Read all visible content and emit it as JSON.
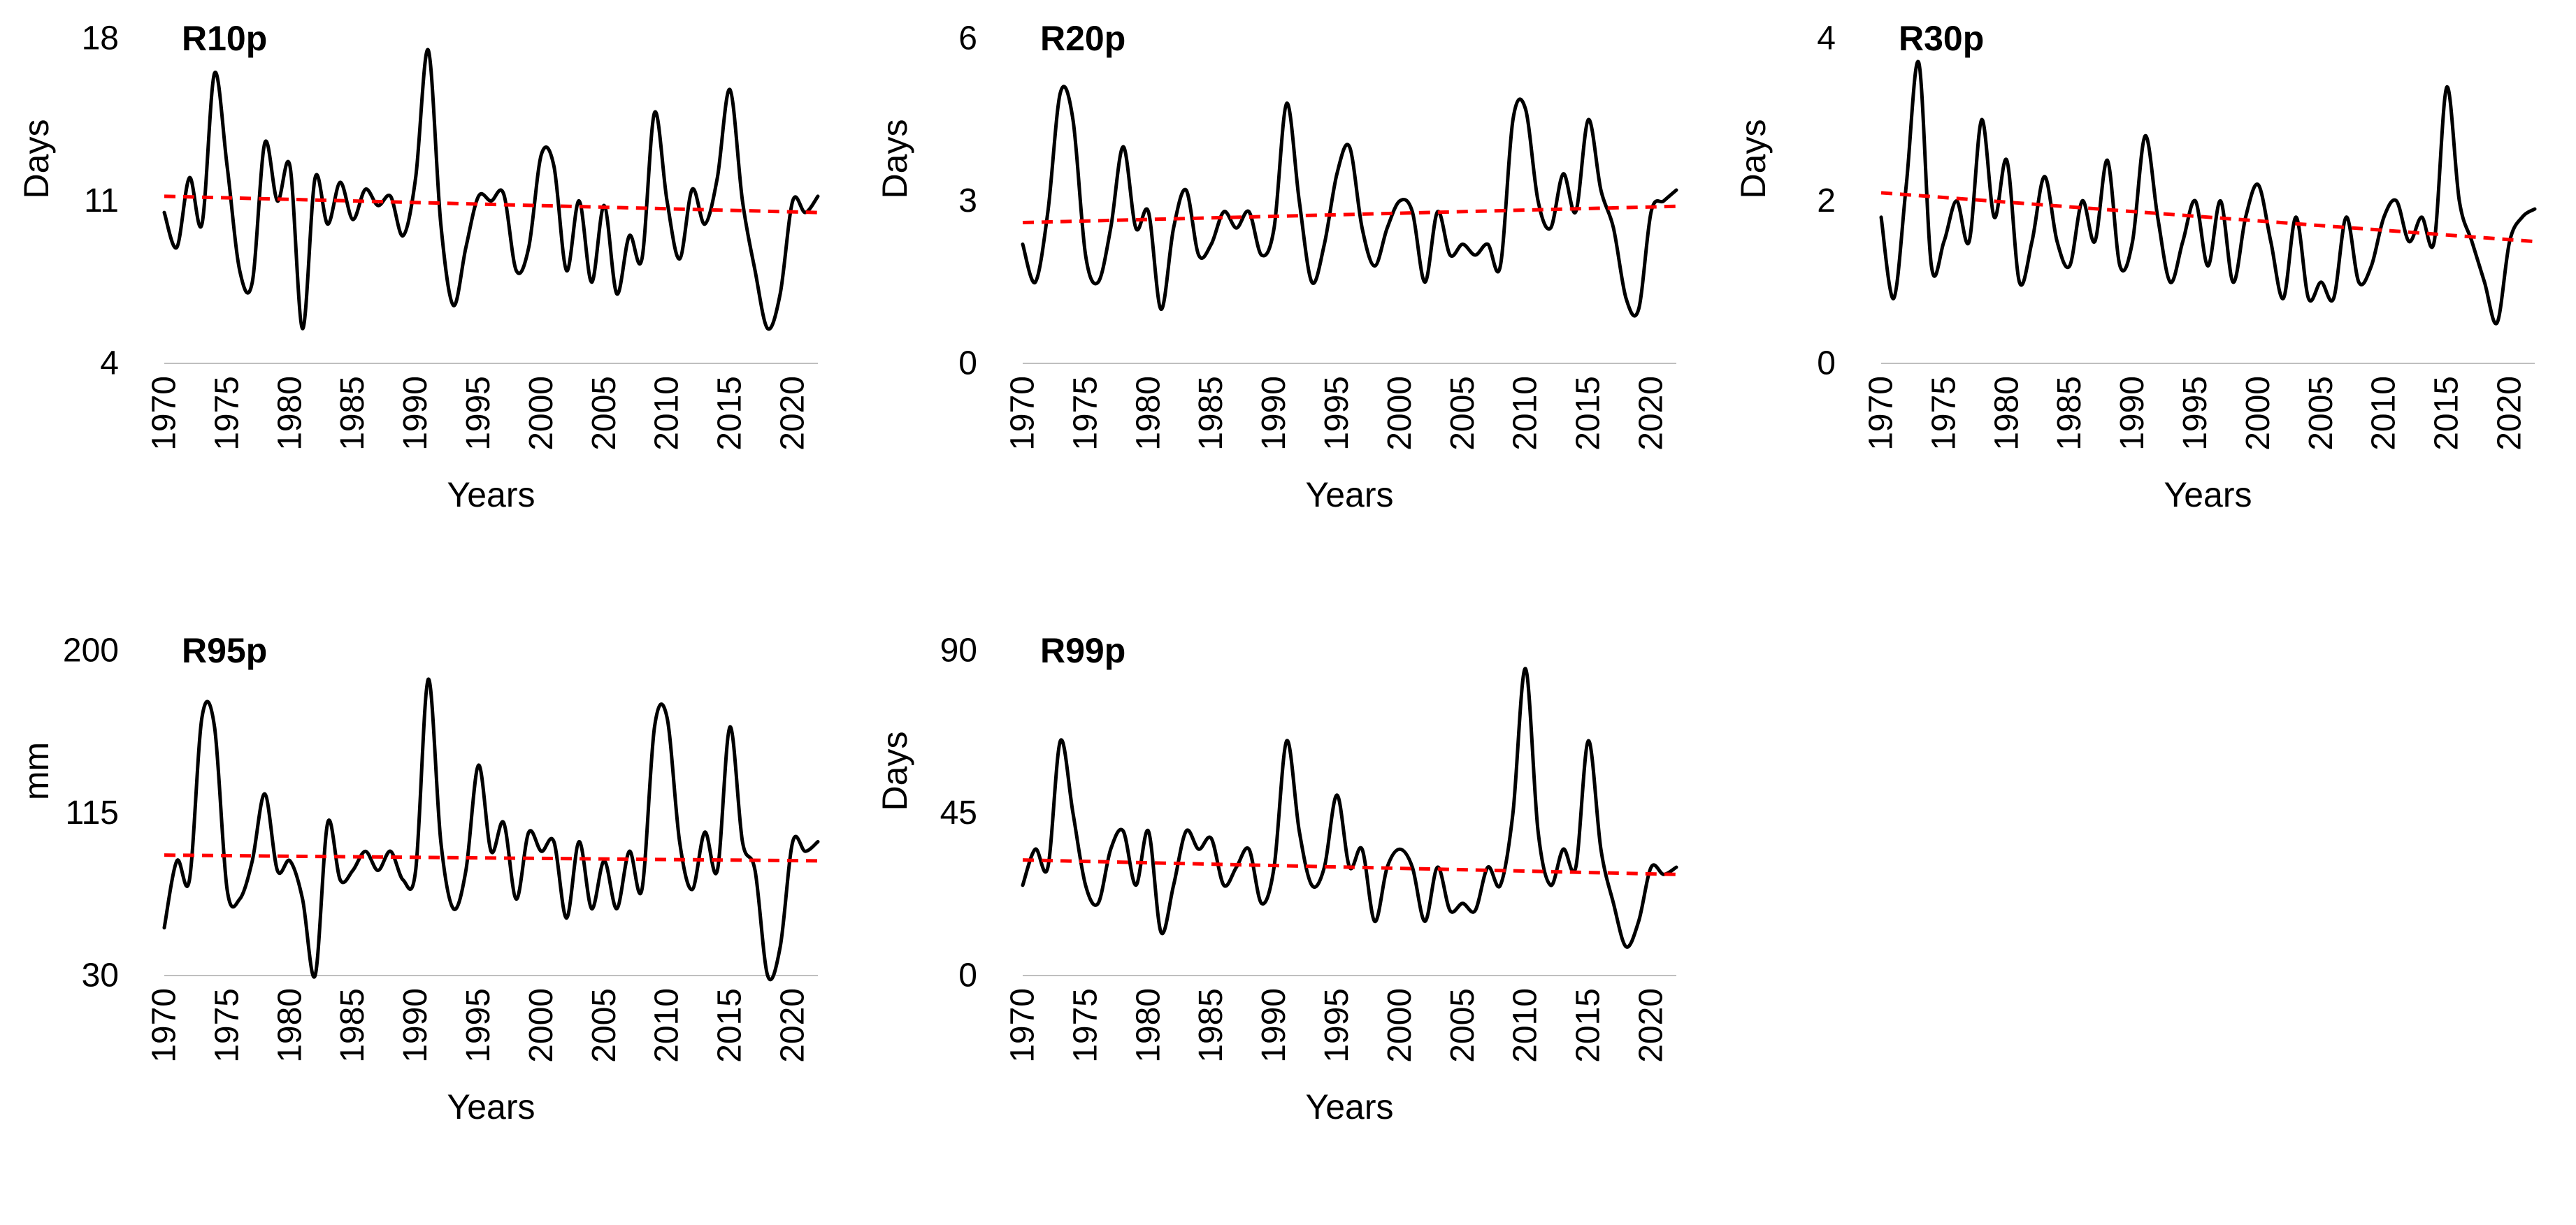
{
  "page": {
    "background": "#ffffff"
  },
  "colors": {
    "line": "#000000",
    "trend": "#ff0000",
    "axis_baseline": "#bfbfbf",
    "text": "#000000"
  },
  "chart_data": [
    {
      "type": "line",
      "title": "R10p",
      "ylabel": "Days",
      "xlabel": "Years",
      "ylim": [
        4,
        18
      ],
      "yticks": [
        4,
        11,
        18
      ],
      "x_start": 1970,
      "x_step": 1,
      "x_ticks": [
        1970,
        1975,
        1980,
        1985,
        1990,
        1995,
        2000,
        2005,
        2010,
        2015,
        2020
      ],
      "values": [
        10.5,
        9.0,
        12.0,
        10.0,
        16.5,
        12.5,
        8.0,
        7.5,
        13.5,
        11.0,
        12.5,
        5.5,
        12.0,
        10.0,
        11.8,
        10.2,
        11.5,
        10.8,
        11.2,
        9.5,
        12.0,
        17.5,
        10.0,
        6.5,
        9.0,
        11.2,
        11.0,
        11.3,
        8.0,
        9.0,
        13.0,
        12.5,
        8.0,
        11.0,
        7.5,
        10.8,
        7.0,
        9.5,
        8.5,
        14.8,
        11.0,
        8.5,
        11.5,
        10.0,
        12.0,
        15.8,
        11.0,
        8.0,
        5.5,
        7.0,
        11.0,
        10.5,
        11.2
      ],
      "trend": {
        "type": "linear",
        "start": 11.2,
        "end": 10.5
      },
      "line_style": "smooth",
      "grid": false,
      "legend": "none"
    },
    {
      "type": "line",
      "title": "R20p",
      "ylabel": "Days",
      "xlabel": "Years",
      "ylim": [
        0,
        6
      ],
      "yticks": [
        0,
        3,
        6
      ],
      "x_start": 1970,
      "x_step": 1,
      "x_ticks": [
        1970,
        1975,
        1980,
        1985,
        1990,
        1995,
        2000,
        2005,
        2010,
        2015,
        2020
      ],
      "values": [
        2.2,
        1.5,
        2.8,
        5.0,
        4.5,
        2.0,
        1.5,
        2.5,
        4.0,
        2.5,
        2.8,
        1.0,
        2.5,
        3.2,
        2.0,
        2.2,
        2.8,
        2.5,
        2.8,
        2.0,
        2.5,
        4.8,
        3.0,
        1.5,
        2.2,
        3.5,
        4.0,
        2.5,
        1.8,
        2.5,
        3.0,
        2.8,
        1.5,
        2.8,
        2.0,
        2.2,
        2.0,
        2.2,
        1.8,
        4.5,
        4.7,
        3.0,
        2.5,
        3.5,
        2.8,
        4.5,
        3.2,
        2.5,
        1.2,
        1.0,
        2.8,
        3.0,
        3.2
      ],
      "trend": {
        "type": "linear",
        "start": 2.6,
        "end": 2.9
      },
      "line_style": "smooth",
      "grid": false,
      "legend": "none"
    },
    {
      "type": "line",
      "title": "R30p",
      "ylabel": "Days",
      "xlabel": "Years",
      "ylim": [
        0,
        4
      ],
      "yticks": [
        0,
        2,
        4
      ],
      "x_start": 1970,
      "x_step": 1,
      "x_ticks": [
        1970,
        1975,
        1980,
        1985,
        1990,
        1995,
        2000,
        2005,
        2010,
        2015,
        2020
      ],
      "values": [
        1.8,
        0.8,
        2.2,
        3.7,
        1.2,
        1.5,
        2.0,
        1.5,
        3.0,
        1.8,
        2.5,
        1.0,
        1.5,
        2.3,
        1.5,
        1.2,
        2.0,
        1.5,
        2.5,
        1.2,
        1.5,
        2.8,
        1.8,
        1.0,
        1.5,
        2.0,
        1.2,
        2.0,
        1.0,
        1.8,
        2.2,
        1.5,
        0.8,
        1.8,
        0.8,
        1.0,
        0.8,
        1.8,
        1.0,
        1.2,
        1.8,
        2.0,
        1.5,
        1.8,
        1.5,
        3.4,
        2.0,
        1.5,
        1.0,
        0.5,
        1.5,
        1.8,
        1.9
      ],
      "trend": {
        "type": "linear",
        "start": 2.1,
        "end": 1.5
      },
      "line_style": "smooth",
      "grid": false,
      "legend": "none"
    },
    {
      "type": "line",
      "title": "R95p",
      "ylabel": "mm",
      "xlabel": "Years",
      "ylim": [
        30,
        200
      ],
      "yticks": [
        30,
        115,
        200
      ],
      "x_start": 1970,
      "x_step": 1,
      "x_ticks": [
        1970,
        1975,
        1980,
        1985,
        1990,
        1995,
        2000,
        2005,
        2010,
        2015,
        2020
      ],
      "values": [
        55,
        90,
        80,
        165,
        160,
        75,
        70,
        90,
        125,
        85,
        90,
        70,
        30,
        110,
        80,
        85,
        95,
        85,
        95,
        80,
        85,
        185,
        100,
        65,
        85,
        140,
        95,
        110,
        70,
        105,
        95,
        100,
        60,
        100,
        65,
        90,
        65,
        95,
        75,
        160,
        165,
        100,
        75,
        105,
        85,
        160,
        100,
        85,
        30,
        45,
        100,
        95,
        100
      ],
      "trend": {
        "type": "linear",
        "start": 93,
        "end": 90
      },
      "line_style": "smooth",
      "grid": false,
      "legend": "none"
    },
    {
      "type": "line",
      "title": "R99p",
      "ylabel": "Days",
      "xlabel": "Years",
      "ylim": [
        0,
        90
      ],
      "yticks": [
        0,
        45,
        90
      ],
      "x_start": 1970,
      "x_step": 1,
      "x_ticks": [
        1970,
        1975,
        1980,
        1985,
        1990,
        1995,
        2000,
        2005,
        2010,
        2015,
        2020
      ],
      "values": [
        25,
        35,
        30,
        65,
        45,
        25,
        20,
        35,
        40,
        25,
        40,
        12,
        25,
        40,
        35,
        38,
        25,
        30,
        35,
        20,
        30,
        65,
        40,
        25,
        30,
        50,
        30,
        35,
        15,
        30,
        35,
        30,
        15,
        30,
        18,
        20,
        18,
        30,
        25,
        45,
        85,
        40,
        25,
        35,
        30,
        65,
        35,
        20,
        8,
        15,
        30,
        28,
        30
      ],
      "trend": {
        "type": "linear",
        "start": 32,
        "end": 28
      },
      "line_style": "smooth",
      "grid": false,
      "legend": "none"
    }
  ]
}
